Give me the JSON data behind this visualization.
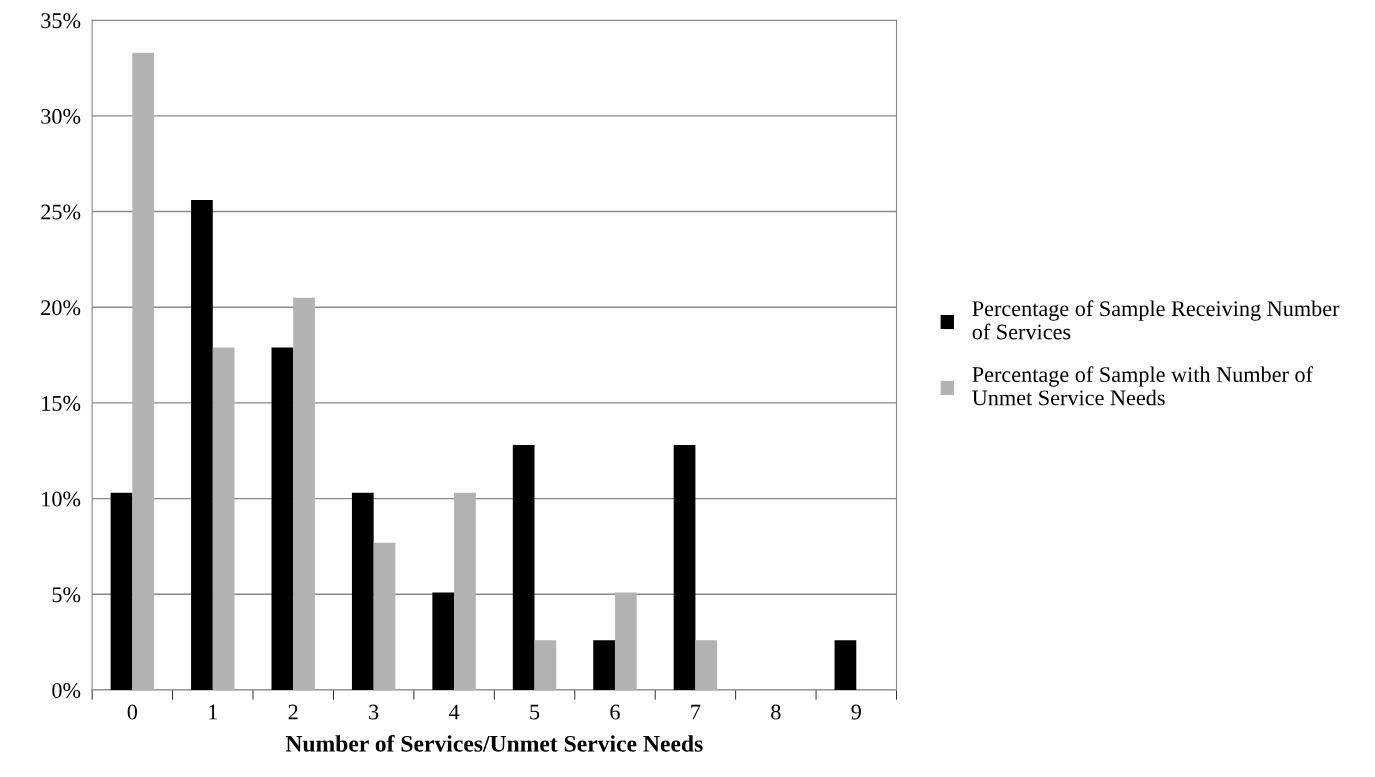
{
  "chart_data": {
    "type": "bar",
    "xlabel": "Number of Services/Unmet Service Needs",
    "categories": [
      "0",
      "1",
      "2",
      "3",
      "4",
      "5",
      "6",
      "7",
      "8",
      "9"
    ],
    "series": [
      {
        "name": "Percentage of Sample Receiving Number of Services",
        "color": "#000000",
        "values": [
          10.3,
          25.6,
          17.9,
          10.3,
          5.1,
          12.8,
          2.6,
          12.8,
          0,
          2.6
        ]
      },
      {
        "name": "Percentage of Sample with Number of Unmet Service Needs",
        "color": "#b2b2b2",
        "values": [
          33.3,
          17.9,
          20.5,
          7.7,
          10.3,
          2.6,
          5.1,
          2.6,
          0,
          0
        ]
      }
    ],
    "ylim": [
      0,
      35
    ],
    "yticks": [
      {
        "value": 0,
        "label": "0%"
      },
      {
        "value": 5,
        "label": "5%"
      },
      {
        "value": 10,
        "label": "10%"
      },
      {
        "value": 15,
        "label": "15%"
      },
      {
        "value": 20,
        "label": "20%"
      },
      {
        "value": 25,
        "label": "25%"
      },
      {
        "value": 30,
        "label": "30%"
      },
      {
        "value": 35,
        "label": "35%"
      }
    ],
    "grid": "y",
    "legend": "right"
  }
}
